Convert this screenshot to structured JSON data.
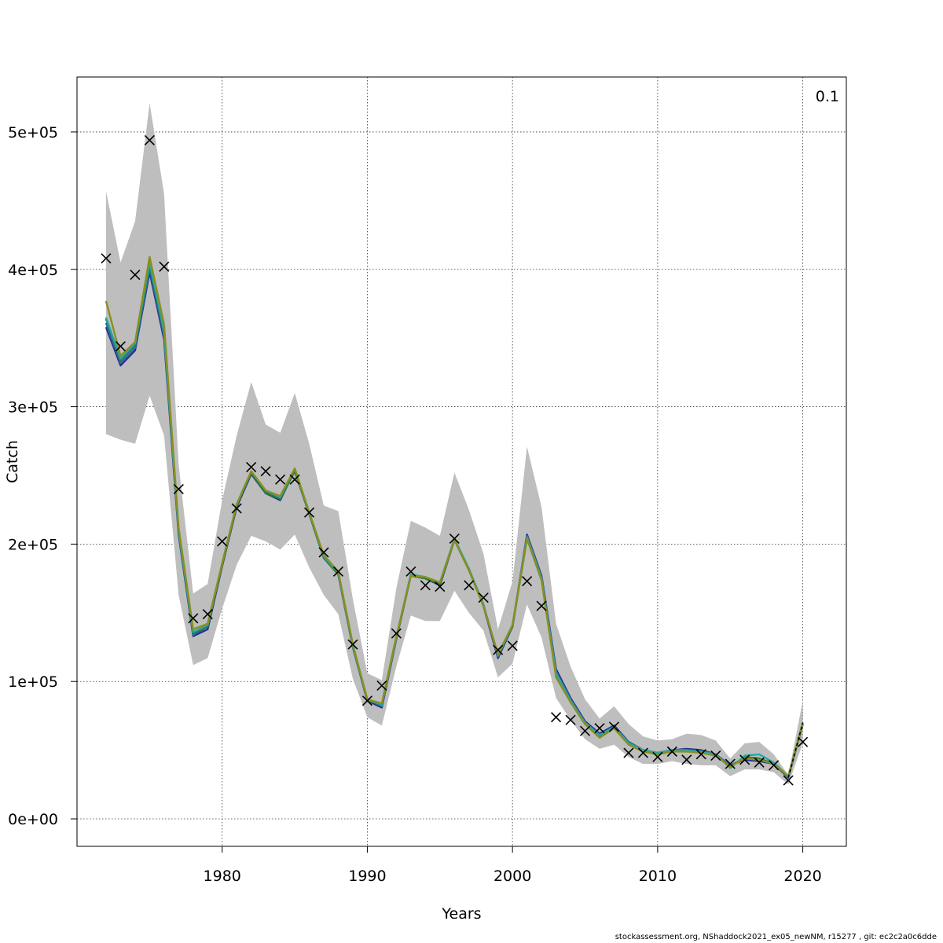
{
  "chart_data": {
    "type": "line",
    "xlabel": "Years",
    "ylabel": "Catch",
    "corner_label": "0.1",
    "xlim": [
      1970,
      2023
    ],
    "ylim": [
      -20000,
      540000
    ],
    "x_ticks": [
      1980,
      1990,
      2000,
      2010,
      2020
    ],
    "y_ticks": [
      0,
      100000,
      200000,
      300000,
      400000,
      500000
    ],
    "y_tick_labels": [
      "0e+00",
      "1e+05",
      "2e+05",
      "3e+05",
      "4e+05",
      "5e+05"
    ],
    "grid": true,
    "years": [
      1972,
      1973,
      1974,
      1975,
      1976,
      1977,
      1978,
      1979,
      1980,
      1981,
      1982,
      1983,
      1984,
      1985,
      1986,
      1987,
      1988,
      1989,
      1990,
      1991,
      1992,
      1993,
      1994,
      1995,
      1996,
      1997,
      1998,
      1999,
      2000,
      2001,
      2002,
      2003,
      2004,
      2005,
      2006,
      2007,
      2008,
      2009,
      2010,
      2011,
      2012,
      2013,
      2014,
      2015,
      2016,
      2017,
      2018,
      2019,
      2020
    ],
    "band_upper": [
      457000,
      405000,
      435000,
      521000,
      455000,
      258000,
      164000,
      171000,
      232000,
      279000,
      318000,
      287000,
      281000,
      310000,
      273000,
      228000,
      224000,
      160000,
      106000,
      101000,
      168000,
      217000,
      212000,
      206000,
      252000,
      225000,
      193000,
      138000,
      173000,
      271000,
      227000,
      142000,
      111000,
      87000,
      73000,
      82000,
      69000,
      60000,
      57000,
      58000,
      62000,
      61000,
      57000,
      44000,
      55000,
      56000,
      47000,
      32000,
      86000
    ],
    "band_lower": [
      280000,
      276000,
      273000,
      308000,
      279000,
      163000,
      112000,
      117000,
      153000,
      185000,
      206000,
      202000,
      196000,
      207000,
      183000,
      163000,
      149000,
      102000,
      74000,
      68000,
      111000,
      148000,
      144000,
      144000,
      166000,
      150000,
      137000,
      103000,
      113000,
      156000,
      132000,
      88000,
      72000,
      58000,
      51000,
      54000,
      45000,
      40000,
      40000,
      42000,
      40000,
      39000,
      39000,
      31000,
      36000,
      36000,
      34000,
      25000,
      55000
    ],
    "series": [
      {
        "color": "#2b2e8c",
        "values": [
          358000,
          330000,
          341000,
          398000,
          349000,
          207000,
          133000,
          138000,
          184000,
          227000,
          251000,
          237000,
          232000,
          254000,
          222000,
          190000,
          178000,
          125000,
          86000,
          81000,
          131000,
          177000,
          175000,
          170000,
          203000,
          182000,
          155000,
          117000,
          140000,
          207000,
          177000,
          109000,
          88000,
          71000,
          62000,
          68000,
          56000,
          50000,
          48000,
          50000,
          51000,
          50000,
          47000,
          39000,
          43000,
          42000,
          40000,
          30000,
          69000
        ]
      },
      {
        "color": "#2b6f9e",
        "values": [
          361000,
          332000,
          343000,
          401000,
          352000,
          208000,
          134000,
          140000,
          185000,
          228000,
          252000,
          238000,
          233000,
          254000,
          223000,
          191000,
          178000,
          126000,
          87000,
          82000,
          132000,
          178000,
          176000,
          171000,
          204000,
          182000,
          156000,
          118000,
          141000,
          206000,
          176000,
          107000,
          87000,
          70000,
          61000,
          67000,
          56000,
          50000,
          48000,
          50000,
          50000,
          49000,
          47000,
          39000,
          44000,
          43000,
          41000,
          30000,
          69000
        ]
      },
      {
        "color": "#1f7a44",
        "values": [
          364000,
          334000,
          345000,
          403000,
          354000,
          209000,
          135000,
          140000,
          185000,
          228000,
          252000,
          237000,
          233000,
          253000,
          222000,
          190000,
          178000,
          126000,
          86000,
          83000,
          132000,
          177000,
          175000,
          171000,
          203000,
          181000,
          155000,
          119000,
          140000,
          204000,
          174000,
          105000,
          85000,
          69000,
          60000,
          66000,
          55000,
          50000,
          48000,
          50000,
          50000,
          49000,
          46000,
          38000,
          45000,
          44000,
          40000,
          31000,
          69000
        ]
      },
      {
        "color": "#2aa6a6",
        "values": [
          365000,
          335000,
          346000,
          405000,
          355000,
          210000,
          136000,
          141000,
          186000,
          229000,
          253000,
          239000,
          234000,
          255000,
          223000,
          191000,
          179000,
          126000,
          87000,
          83000,
          132000,
          178000,
          176000,
          172000,
          204000,
          182000,
          156000,
          119000,
          141000,
          205000,
          175000,
          106000,
          86000,
          70000,
          61000,
          67000,
          55000,
          50000,
          48000,
          50000,
          50000,
          49000,
          47000,
          37000,
          46000,
          47000,
          41000,
          31000,
          70000
        ]
      },
      {
        "color": "#8a8f1e",
        "values": [
          377000,
          337000,
          347000,
          409000,
          360000,
          212000,
          138000,
          142000,
          186000,
          229000,
          253000,
          239000,
          235000,
          255000,
          223000,
          192000,
          180000,
          127000,
          87000,
          84000,
          133000,
          177000,
          176000,
          172000,
          203000,
          181000,
          155000,
          120000,
          141000,
          204000,
          174000,
          103000,
          85000,
          69000,
          59000,
          66000,
          54000,
          49000,
          47000,
          49000,
          49000,
          48000,
          46000,
          38000,
          44000,
          43000,
          40000,
          31000,
          70000
        ]
      },
      {
        "color": "#000000",
        "dashed": true,
        "values": [
          null,
          null,
          null,
          null,
          null,
          null,
          null,
          null,
          null,
          null,
          null,
          null,
          null,
          null,
          null,
          null,
          null,
          null,
          null,
          null,
          null,
          null,
          null,
          null,
          null,
          null,
          null,
          null,
          null,
          null,
          null,
          null,
          null,
          null,
          null,
          null,
          null,
          null,
          null,
          null,
          null,
          null,
          null,
          null,
          null,
          null,
          null,
          30000,
          70000
        ]
      }
    ],
    "observed": [
      408000,
      344000,
      396000,
      494000,
      402000,
      240000,
      146000,
      149000,
      202000,
      226000,
      256000,
      253000,
      247000,
      247000,
      223000,
      194000,
      180000,
      127000,
      86000,
      97000,
      135000,
      180000,
      170000,
      169000,
      204000,
      170000,
      161000,
      123000,
      126000,
      173000,
      155000,
      74000,
      72000,
      64000,
      66000,
      67000,
      48000,
      48000,
      45000,
      49000,
      43000,
      47000,
      46000,
      40000,
      43000,
      41000,
      39000,
      28000,
      56000
    ]
  },
  "footer_text": "stockassessment.org, NShaddock2021_ex05_newNM, r15277 , git: ec2c2a0c6dde"
}
